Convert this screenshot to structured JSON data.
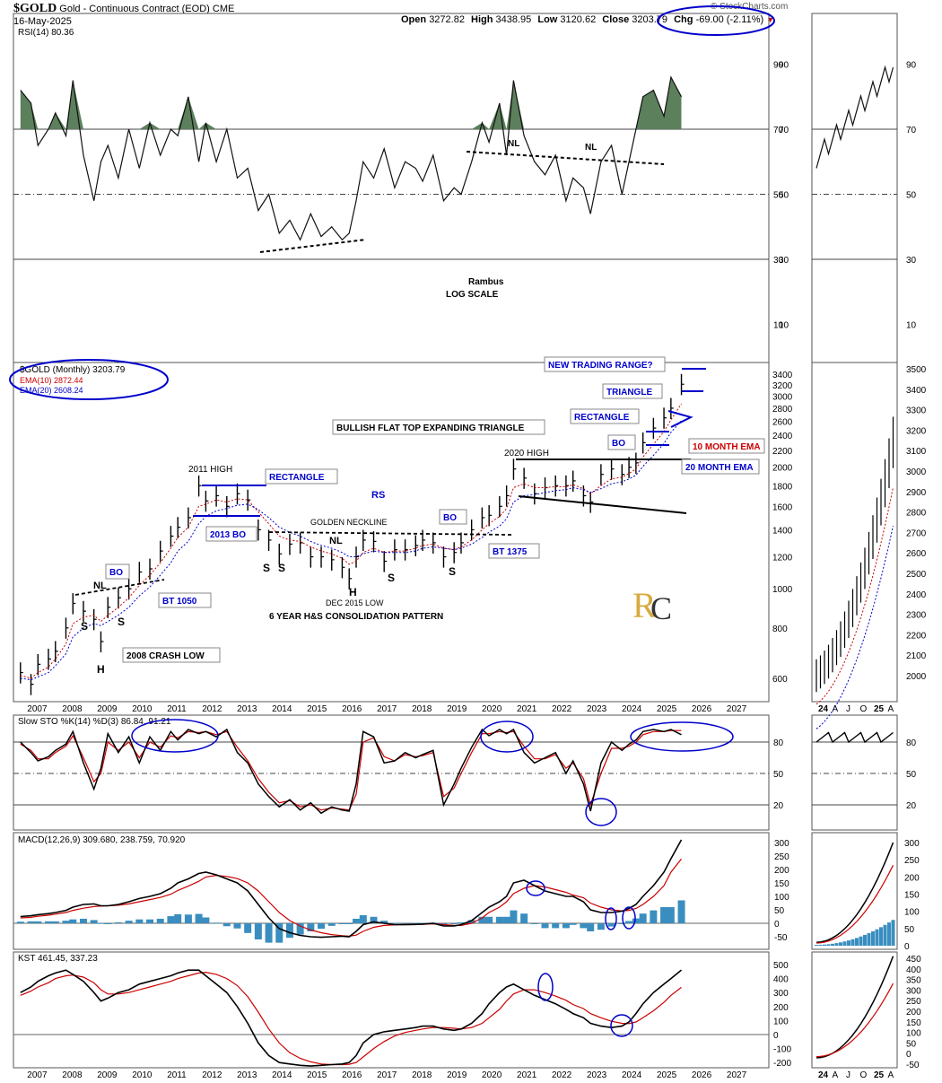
{
  "header": {
    "symbol": "$GOLD",
    "name": "Gold - Continuous Contract (EOD)",
    "exchange": "CME",
    "date": "16-May-2025",
    "open_label": "Open",
    "open": "3272.82",
    "high_label": "High",
    "high": "3438.95",
    "low_label": "Low",
    "low": "3120.62",
    "close_label": "Close",
    "close": "3203.79",
    "chg_label": "Chg",
    "chg": "-69.00 (-2.11%)",
    "source": "© StockCharts.com"
  },
  "colors": {
    "up": "#000000",
    "ema10": "#cc0000",
    "ema20": "#0000cc",
    "annotation": "#0000cc",
    "rsi_fill": "#5c7f5c",
    "histogram": "#3a8ebf"
  },
  "chart_data": [
    {
      "type": "line",
      "panel": "rsi",
      "title": "RSI(14) 80.36",
      "yticks": [
        90,
        70,
        50,
        30,
        10
      ],
      "ylim": [
        0,
        100
      ],
      "levels": [
        70,
        50,
        30
      ],
      "x": [
        2006.5,
        2006.8,
        2007.0,
        2007.3,
        2007.5,
        2007.8,
        2008.0,
        2008.3,
        2008.6,
        2008.8,
        2009.0,
        2009.3,
        2009.6,
        2009.9,
        2010.2,
        2010.5,
        2010.8,
        2011.0,
        2011.3,
        2011.6,
        2011.8,
        2012.1,
        2012.4,
        2012.7,
        2013.0,
        2013.3,
        2013.6,
        2013.9,
        2014.2,
        2014.5,
        2014.8,
        2015.1,
        2015.4,
        2015.7,
        2015.9,
        2016.1,
        2016.3,
        2016.6,
        2016.9,
        2017.2,
        2017.5,
        2017.8,
        2018.0,
        2018.3,
        2018.6,
        2018.9,
        2019.1,
        2019.4,
        2019.7,
        2019.9,
        2020.2,
        2020.4,
        2020.6,
        2020.9,
        2021.2,
        2021.5,
        2021.8,
        2022.1,
        2022.3,
        2022.6,
        2022.8,
        2023.1,
        2023.4,
        2023.7,
        2023.9,
        2024.1,
        2024.3,
        2024.6,
        2024.9,
        2025.1,
        2025.4
      ],
      "values": [
        82,
        78,
        65,
        70,
        75,
        68,
        85,
        62,
        48,
        60,
        65,
        55,
        70,
        58,
        72,
        62,
        70,
        68,
        80,
        60,
        72,
        60,
        70,
        55,
        58,
        45,
        50,
        38,
        42,
        36,
        44,
        37,
        40,
        36,
        38,
        48,
        60,
        55,
        64,
        52,
        60,
        58,
        54,
        62,
        48,
        52,
        50,
        60,
        72,
        66,
        78,
        62,
        85,
        68,
        60,
        56,
        62,
        48,
        55,
        52,
        44,
        60,
        65,
        50,
        60,
        70,
        80,
        82,
        74,
        86,
        80
      ],
      "annotations": [
        "NL",
        "NL"
      ]
    },
    {
      "type": "bar",
      "panel": "price",
      "title": "$GOLD (Monthly) 3203.79",
      "scale": "log",
      "series": [
        {
          "name": "EMA(10) 2872.44",
          "color": "#cc0000"
        },
        {
          "name": "EMA(20) 2608.24",
          "color": "#0000cc"
        }
      ],
      "yticks": [
        600,
        800,
        1000,
        1200,
        1400,
        1600,
        1800,
        2000,
        2200,
        2400,
        2600,
        2800,
        3000,
        3200,
        3400
      ],
      "xticks": [
        "2007",
        "2008",
        "2009",
        "2010",
        "2011",
        "2012",
        "2013",
        "2014",
        "2015",
        "2016",
        "2017",
        "2018",
        "2019",
        "2020",
        "2021",
        "2022",
        "2023",
        "2024",
        "2025",
        "2026",
        "2027"
      ],
      "x": [
        2006.5,
        2006.8,
        2007.0,
        2007.3,
        2007.5,
        2007.8,
        2008.0,
        2008.3,
        2008.6,
        2008.8,
        2009.0,
        2009.3,
        2009.6,
        2009.9,
        2010.2,
        2010.5,
        2010.8,
        2011.0,
        2011.3,
        2011.6,
        2011.8,
        2012.1,
        2012.4,
        2012.7,
        2013.0,
        2013.3,
        2013.6,
        2013.9,
        2014.2,
        2014.5,
        2014.8,
        2015.1,
        2015.4,
        2015.7,
        2015.9,
        2016.1,
        2016.3,
        2016.6,
        2016.9,
        2017.2,
        2017.5,
        2017.8,
        2018.0,
        2018.3,
        2018.6,
        2018.9,
        2019.1,
        2019.4,
        2019.7,
        2019.9,
        2020.2,
        2020.4,
        2020.6,
        2020.9,
        2021.2,
        2021.5,
        2021.8,
        2022.1,
        2022.3,
        2022.6,
        2022.8,
        2023.1,
        2023.4,
        2023.7,
        2023.9,
        2024.1,
        2024.3,
        2024.6,
        2024.9,
        2025.1,
        2025.4
      ],
      "close": [
        620,
        580,
        650,
        670,
        700,
        800,
        920,
        880,
        840,
        740,
        900,
        950,
        1000,
        1100,
        1120,
        1240,
        1350,
        1420,
        1500,
        1800,
        1650,
        1700,
        1600,
        1720,
        1660,
        1400,
        1320,
        1220,
        1290,
        1300,
        1200,
        1200,
        1180,
        1130,
        1060,
        1200,
        1320,
        1310,
        1170,
        1250,
        1250,
        1280,
        1320,
        1300,
        1200,
        1230,
        1300,
        1400,
        1500,
        1520,
        1600,
        1700,
        1980,
        1880,
        1720,
        1780,
        1800,
        1800,
        1850,
        1700,
        1640,
        1920,
        1980,
        1920,
        2000,
        2050,
        2300,
        2500,
        2650,
        2800,
        3210
      ],
      "ema10": [
        610,
        600,
        620,
        640,
        670,
        730,
        820,
        850,
        860,
        830,
        860,
        900,
        950,
        1020,
        1080,
        1160,
        1260,
        1340,
        1420,
        1600,
        1620,
        1660,
        1640,
        1670,
        1660,
        1550,
        1450,
        1350,
        1320,
        1310,
        1270,
        1240,
        1220,
        1190,
        1150,
        1170,
        1230,
        1260,
        1230,
        1240,
        1240,
        1260,
        1280,
        1290,
        1260,
        1250,
        1270,
        1320,
        1400,
        1450,
        1510,
        1580,
        1780,
        1820,
        1780,
        1780,
        1790,
        1790,
        1810,
        1770,
        1720,
        1800,
        1870,
        1890,
        1930,
        1980,
        2120,
        2280,
        2450,
        2620,
        2872
      ],
      "ema20": [
        600,
        595,
        605,
        620,
        645,
        690,
        760,
        800,
        820,
        810,
        830,
        860,
        900,
        960,
        1010,
        1080,
        1160,
        1240,
        1310,
        1450,
        1510,
        1560,
        1580,
        1610,
        1620,
        1570,
        1500,
        1420,
        1380,
        1350,
        1310,
        1280,
        1260,
        1230,
        1200,
        1200,
        1220,
        1240,
        1230,
        1230,
        1230,
        1240,
        1260,
        1270,
        1260,
        1250,
        1260,
        1290,
        1340,
        1380,
        1430,
        1490,
        1640,
        1700,
        1710,
        1730,
        1750,
        1760,
        1780,
        1760,
        1730,
        1770,
        1820,
        1840,
        1870,
        1910,
        2010,
        2140,
        2290,
        2440,
        2608
      ],
      "annotations": [
        "NEW TRADING RANGE?",
        "TRIANGLE",
        "RECTANGLE",
        "BULLISH FLAT TOP EXPANDING TRIANGLE",
        "BO",
        "10 MONTH EMA",
        "2020 HIGH",
        "20 MONTH EMA",
        "2011 HIGH",
        "RECTANGLE",
        "RS",
        "2013 BO",
        "GOLDEN NECKLINE",
        "BO",
        "NL",
        "S",
        "S",
        "S",
        "S",
        "H",
        "BT 1375",
        "DEC 2015 LOW",
        "6 YEAR H&S CONSOLIDATION PATTERN",
        "BO",
        "NL",
        "S",
        "S",
        "H",
        "BT 1050",
        "2008 CRASH LOW",
        "Rambus",
        "LOG SCALE"
      ]
    },
    {
      "type": "line",
      "panel": "stochastic",
      "title": "Slow STO %K(14) %D(3) 86.84, 91.21",
      "yticks": [
        80,
        50,
        20
      ],
      "ylim": [
        0,
        100
      ],
      "x": [
        2006.5,
        2006.8,
        2007.0,
        2007.3,
        2007.5,
        2007.8,
        2008.0,
        2008.3,
        2008.6,
        2008.8,
        2009.0,
        2009.3,
        2009.6,
        2009.9,
        2010.2,
        2010.5,
        2010.8,
        2011.0,
        2011.3,
        2011.6,
        2011.8,
        2012.1,
        2012.4,
        2012.7,
        2013.0,
        2013.3,
        2013.6,
        2013.9,
        2014.2,
        2014.5,
        2014.8,
        2015.1,
        2015.4,
        2015.7,
        2015.9,
        2016.1,
        2016.3,
        2016.6,
        2016.9,
        2017.2,
        2017.5,
        2017.8,
        2018.0,
        2018.3,
        2018.6,
        2018.9,
        2019.1,
        2019.4,
        2019.7,
        2019.9,
        2020.2,
        2020.4,
        2020.6,
        2020.9,
        2021.2,
        2021.5,
        2021.8,
        2022.1,
        2022.3,
        2022.6,
        2022.8,
        2023.1,
        2023.4,
        2023.7,
        2023.9,
        2024.1,
        2024.3,
        2024.6,
        2024.9,
        2025.1,
        2025.4
      ],
      "k": [
        80,
        70,
        62,
        66,
        72,
        78,
        90,
        60,
        35,
        55,
        88,
        70,
        85,
        60,
        85,
        72,
        90,
        82,
        92,
        88,
        90,
        85,
        92,
        70,
        60,
        40,
        28,
        18,
        25,
        15,
        22,
        12,
        18,
        15,
        14,
        40,
        90,
        85,
        60,
        62,
        70,
        65,
        68,
        72,
        20,
        40,
        55,
        75,
        92,
        86,
        92,
        88,
        92,
        70,
        60,
        65,
        70,
        50,
        62,
        40,
        14,
        60,
        80,
        72,
        78,
        82,
        90,
        92,
        90,
        92,
        87
      ],
      "d": [
        78,
        72,
        64,
        64,
        70,
        76,
        86,
        65,
        42,
        50,
        80,
        72,
        80,
        65,
        80,
        75,
        86,
        84,
        90,
        89,
        90,
        87,
        90,
        75,
        62,
        45,
        32,
        22,
        24,
        18,
        20,
        15,
        17,
        16,
        15,
        30,
        80,
        84,
        66,
        62,
        68,
        66,
        67,
        70,
        28,
        36,
        50,
        70,
        88,
        88,
        90,
        89,
        90,
        76,
        64,
        64,
        68,
        55,
        60,
        45,
        20,
        50,
        74,
        74,
        76,
        80,
        87,
        90,
        90,
        91,
        91
      ]
    },
    {
      "type": "line",
      "panel": "macd",
      "title": "MACD(12,26,9) 309.680, 238.759, 70.920",
      "yticks": [
        300,
        250,
        200,
        150,
        100,
        50,
        0,
        -50
      ],
      "ylim": [
        -70,
        320
      ],
      "x": [
        2006.5,
        2006.8,
        2007.0,
        2007.3,
        2007.5,
        2007.8,
        2008.0,
        2008.3,
        2008.6,
        2008.8,
        2009.0,
        2009.3,
        2009.6,
        2009.9,
        2010.2,
        2010.5,
        2010.8,
        2011.0,
        2011.3,
        2011.6,
        2011.8,
        2012.1,
        2012.4,
        2012.7,
        2013.0,
        2013.3,
        2013.6,
        2013.9,
        2014.2,
        2014.5,
        2014.8,
        2015.1,
        2015.4,
        2015.7,
        2015.9,
        2016.1,
        2016.3,
        2016.6,
        2016.9,
        2017.2,
        2017.5,
        2017.8,
        2018.0,
        2018.3,
        2018.6,
        2018.9,
        2019.1,
        2019.4,
        2019.7,
        2019.9,
        2020.2,
        2020.4,
        2020.6,
        2020.9,
        2021.2,
        2021.5,
        2021.8,
        2022.1,
        2022.3,
        2022.6,
        2022.8,
        2023.1,
        2023.4,
        2023.7,
        2023.9,
        2024.1,
        2024.3,
        2024.6,
        2024.9,
        2025.1,
        2025.4
      ],
      "macd": [
        25,
        28,
        32,
        36,
        40,
        48,
        60,
        70,
        72,
        65,
        65,
        70,
        80,
        92,
        100,
        110,
        130,
        150,
        165,
        185,
        190,
        180,
        165,
        150,
        120,
        70,
        20,
        -20,
        -35,
        -45,
        -50,
        -52,
        -50,
        -48,
        -50,
        -30,
        -5,
        5,
        0,
        -5,
        -5,
        -4,
        -3,
        0,
        -10,
        -10,
        -5,
        10,
        40,
        60,
        80,
        100,
        150,
        160,
        140,
        120,
        110,
        100,
        100,
        80,
        50,
        40,
        40,
        45,
        55,
        70,
        100,
        140,
        190,
        240,
        310
      ],
      "signal": [
        20,
        22,
        26,
        30,
        34,
        40,
        48,
        56,
        62,
        64,
        65,
        67,
        72,
        80,
        88,
        96,
        108,
        122,
        138,
        156,
        172,
        178,
        174,
        166,
        150,
        120,
        80,
        40,
        10,
        -10,
        -25,
        -35,
        -42,
        -46,
        -48,
        -44,
        -30,
        -15,
        -8,
        -6,
        -5,
        -5,
        -4,
        -2,
        -5,
        -8,
        -8,
        0,
        20,
        40,
        60,
        80,
        110,
        130,
        140,
        135,
        125,
        115,
        105,
        95,
        75,
        60,
        50,
        46,
        48,
        55,
        70,
        100,
        140,
        190,
        239
      ]
    },
    {
      "type": "line",
      "panel": "kst",
      "title": "KST 461.45, 337.23",
      "yticks": [
        500,
        400,
        300,
        200,
        100,
        0,
        -100,
        -200
      ],
      "ylim": [
        -230,
        560
      ],
      "x": [
        2006.5,
        2006.8,
        2007.0,
        2007.3,
        2007.5,
        2007.8,
        2008.0,
        2008.3,
        2008.6,
        2008.8,
        2009.0,
        2009.3,
        2009.6,
        2009.9,
        2010.2,
        2010.5,
        2010.8,
        2011.0,
        2011.3,
        2011.6,
        2011.8,
        2012.1,
        2012.4,
        2012.7,
        2013.0,
        2013.3,
        2013.6,
        2013.9,
        2014.2,
        2014.5,
        2014.8,
        2015.1,
        2015.4,
        2015.7,
        2015.9,
        2016.1,
        2016.3,
        2016.6,
        2016.9,
        2017.2,
        2017.5,
        2017.8,
        2018.0,
        2018.3,
        2018.6,
        2018.9,
        2019.1,
        2019.4,
        2019.7,
        2019.9,
        2020.2,
        2020.4,
        2020.6,
        2020.9,
        2021.2,
        2021.5,
        2021.8,
        2022.1,
        2022.3,
        2022.6,
        2022.8,
        2023.1,
        2023.4,
        2023.7,
        2023.9,
        2024.1,
        2024.3,
        2024.6,
        2024.9,
        2025.1,
        2025.4
      ],
      "kst": [
        300,
        340,
        380,
        420,
        440,
        460,
        430,
        380,
        300,
        240,
        260,
        300,
        320,
        360,
        380,
        400,
        420,
        440,
        460,
        460,
        420,
        360,
        300,
        200,
        80,
        -60,
        -150,
        -200,
        -210,
        -220,
        -225,
        -220,
        -215,
        -210,
        -200,
        -150,
        -60,
        0,
        20,
        30,
        40,
        50,
        60,
        60,
        40,
        30,
        40,
        80,
        150,
        220,
        300,
        340,
        360,
        320,
        280,
        250,
        220,
        180,
        150,
        120,
        80,
        60,
        50,
        60,
        90,
        150,
        220,
        300,
        360,
        400,
        461
      ],
      "signal": [
        280,
        310,
        340,
        370,
        400,
        420,
        425,
        410,
        370,
        320,
        290,
        290,
        300,
        320,
        340,
        360,
        380,
        400,
        420,
        440,
        445,
        430,
        400,
        350,
        270,
        160,
        40,
        -60,
        -130,
        -170,
        -195,
        -210,
        -215,
        -215,
        -212,
        -200,
        -160,
        -100,
        -50,
        -10,
        15,
        30,
        40,
        50,
        50,
        45,
        40,
        50,
        80,
        120,
        180,
        240,
        290,
        320,
        320,
        300,
        275,
        245,
        215,
        185,
        150,
        120,
        95,
        80,
        78,
        90,
        120,
        170,
        230,
        280,
        337
      ]
    }
  ],
  "inset": {
    "xticks": [
      "24",
      "A",
      "J",
      "O",
      "25",
      "A"
    ],
    "price_yticks": [
      3500,
      3400,
      3300,
      3200,
      3100,
      3000,
      2900,
      2800,
      2700,
      2600,
      2500,
      2400,
      2300,
      2200,
      2100,
      2000
    ],
    "rsi_yticks": [
      90,
      70,
      50,
      30,
      10
    ],
    "sto_yticks": [
      80,
      50,
      20
    ],
    "macd_yticks": [
      300,
      250,
      200,
      150,
      100,
      50,
      0
    ],
    "kst_yticks": [
      450,
      400,
      350,
      300,
      250,
      200,
      150,
      100,
      50,
      0,
      -50
    ]
  }
}
